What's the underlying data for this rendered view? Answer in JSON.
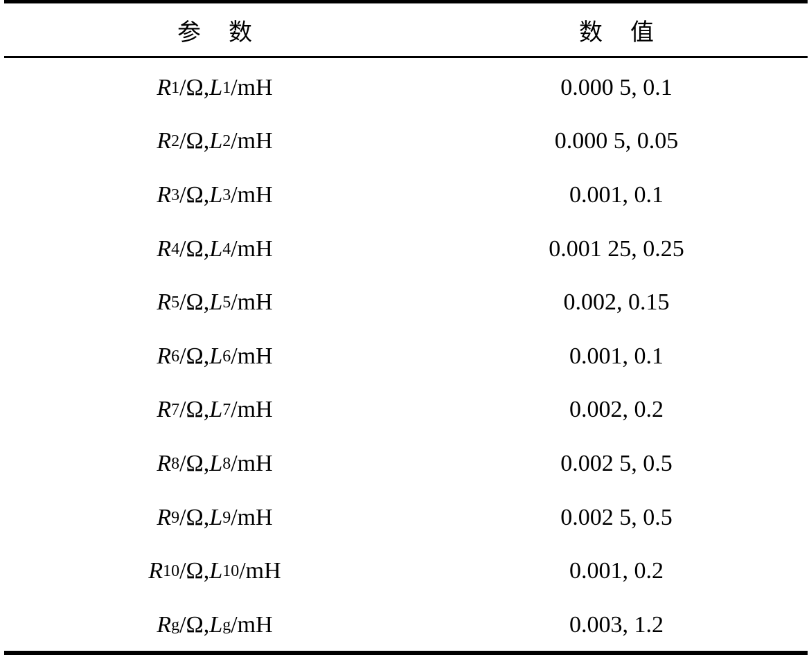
{
  "header": {
    "param_chars": [
      "参",
      "数"
    ],
    "value_chars": [
      "数",
      "值"
    ]
  },
  "rows": [
    {
      "r": "R",
      "rsub": "1",
      "l": "L",
      "lsub": "1",
      "r_unit": "/Ω, ",
      "l_unit": "/mH",
      "value": "0.000 5, 0.1"
    },
    {
      "r": "R",
      "rsub": "2",
      "l": "L",
      "lsub": "2",
      "r_unit": "/Ω, ",
      "l_unit": "/mH",
      "value": "0.000 5, 0.05"
    },
    {
      "r": "R",
      "rsub": "3",
      "l": "L",
      "lsub": "3",
      "r_unit": "/Ω, ",
      "l_unit": "/mH",
      "value": "0.001, 0.1"
    },
    {
      "r": "R",
      "rsub": "4",
      "l": "L",
      "lsub": "4",
      "r_unit": "/Ω, ",
      "l_unit": "/mH",
      "value": "0.001 25, 0.25"
    },
    {
      "r": "R",
      "rsub": "5",
      "l": "L",
      "lsub": "5",
      "r_unit": "/Ω, ",
      "l_unit": "/mH",
      "value": "0.002, 0.15"
    },
    {
      "r": "R",
      "rsub": "6",
      "l": "L",
      "lsub": "6",
      "r_unit": "/Ω, ",
      "l_unit": "/mH",
      "value": "0.001, 0.1"
    },
    {
      "r": "R",
      "rsub": "7",
      "l": "L",
      "lsub": "7",
      "r_unit": "/Ω, ",
      "l_unit": "/mH",
      "value": "0.002, 0.2"
    },
    {
      "r": "R",
      "rsub": "8",
      "l": "L",
      "lsub": "8",
      "r_unit": "/Ω, ",
      "l_unit": "/mH",
      "value": "0.002 5, 0.5"
    },
    {
      "r": "R",
      "rsub": "9",
      "l": "L",
      "lsub": "9",
      "r_unit": "/Ω, ",
      "l_unit": "/mH",
      "value": "0.002 5, 0.5"
    },
    {
      "r": "R",
      "rsub": "10",
      "l": "L",
      "lsub": "10",
      "r_unit": "/Ω, ",
      "l_unit": "/mH",
      "value": "0.001, 0.2"
    },
    {
      "r": "R",
      "rsub": "g",
      "l": "L",
      "lsub": "g",
      "r_unit": "/Ω, ",
      "l_unit": "/mH",
      "value": "0.003, 1.2"
    }
  ]
}
